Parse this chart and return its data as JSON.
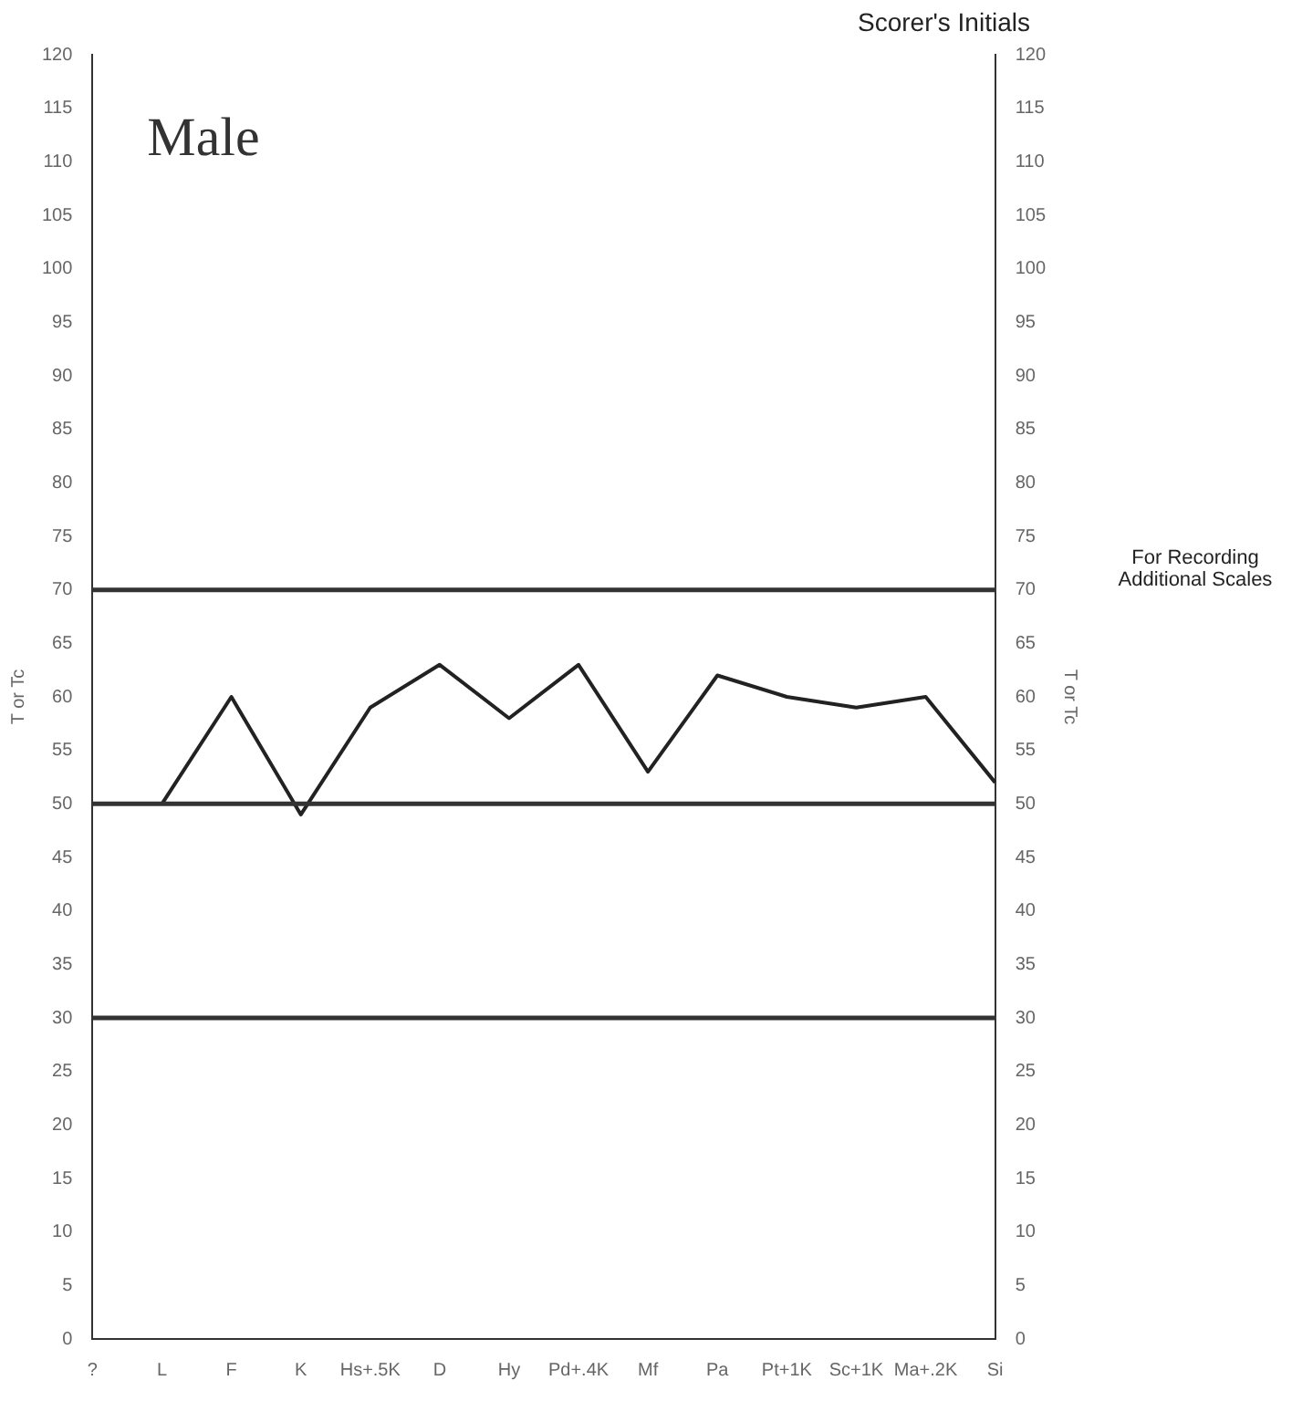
{
  "chart_data": {
    "type": "line",
    "title": "Male",
    "ylabel": "T or Tc",
    "y2label": "T or Tc",
    "categories": [
      "?",
      "L",
      "F",
      "K",
      "Hs+.5K",
      "D",
      "Hy",
      "Pd+.4K",
      "Mf",
      "Pa",
      "Pt+1K",
      "Sc+1K",
      "Ma+.2K",
      "Si"
    ],
    "series": [
      {
        "color": "#222222",
        "values": [
          null,
          50,
          60,
          49,
          59,
          63,
          58,
          63,
          53,
          62,
          60,
          59,
          60,
          52
        ]
      }
    ],
    "ylim": [
      0,
      120
    ],
    "yticks": [
      0,
      5,
      10,
      15,
      20,
      25,
      30,
      35,
      40,
      45,
      50,
      55,
      60,
      65,
      70,
      75,
      80,
      85,
      90,
      95,
      100,
      105,
      110,
      115,
      120
    ],
    "y2lim": [
      0,
      120
    ],
    "y2ticks": [
      0,
      5,
      10,
      15,
      20,
      25,
      30,
      35,
      40,
      45,
      50,
      55,
      60,
      65,
      70,
      75,
      80,
      85,
      90,
      95,
      100,
      105,
      110,
      115,
      120
    ],
    "ref_lines": [
      {
        "axis": "y",
        "value": 70,
        "color": "#333333"
      },
      {
        "axis": "y",
        "value": 50,
        "color": "#333333"
      },
      {
        "axis": "y",
        "value": 30,
        "color": "#333333"
      }
    ],
    "annotations": [
      "Scorer's Initials",
      "For Recording Additional Scales"
    ],
    "grid": false,
    "legend": false,
    "marker": "none",
    "line_style": "solid"
  }
}
